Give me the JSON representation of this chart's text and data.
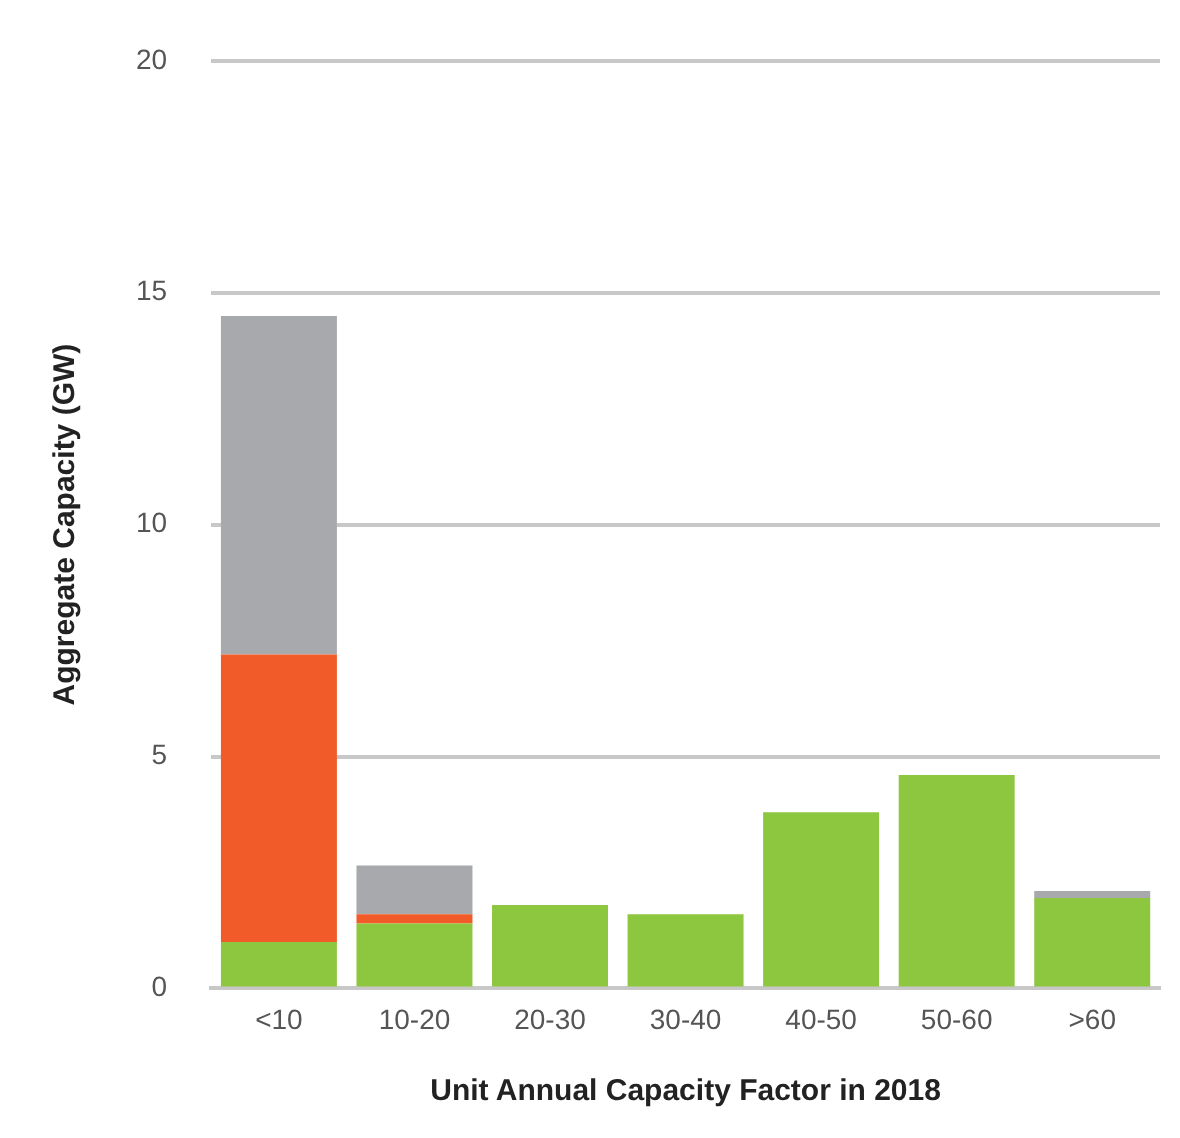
{
  "chart_data": {
    "type": "bar",
    "stacked": true,
    "xlabel": "Unit Annual Capacity Factor in 2018",
    "ylabel": "Aggregate Capacity (GW)",
    "categories": [
      "<10",
      "10-20",
      "20-30",
      "30-40",
      "40-50",
      "50-60",
      ">60"
    ],
    "series": [
      {
        "color": "#8dc63f",
        "values": [
          1.0,
          1.4,
          1.8,
          1.6,
          3.8,
          4.6,
          1.95
        ]
      },
      {
        "color": "#f15a29",
        "values": [
          6.2,
          0.2,
          0,
          0,
          0,
          0,
          0
        ]
      },
      {
        "color": "#a7a9ac",
        "values": [
          7.3,
          1.05,
          0,
          0,
          0,
          0,
          0.15
        ]
      }
    ],
    "ylim": [
      0,
      20
    ],
    "yticks": [
      0,
      5,
      10,
      15,
      20
    ],
    "grid": "y",
    "legend": false
  }
}
